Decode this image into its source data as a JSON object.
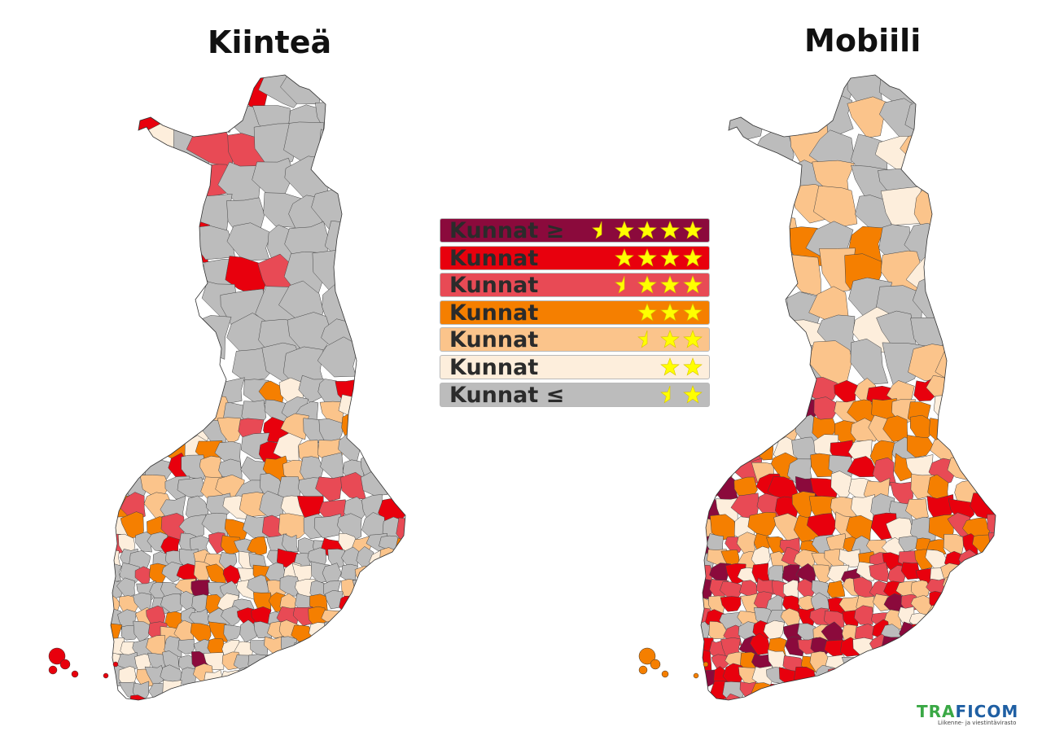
{
  "titles": {
    "left": "Kiinteä",
    "right": "Mobiili"
  },
  "legend": [
    {
      "label": "Kunnat ≥",
      "color": "#8b0a3c",
      "stars": 4.5
    },
    {
      "label": "Kunnat",
      "color": "#e8000d",
      "stars": 4
    },
    {
      "label": "Kunnat",
      "color": "#e84a55",
      "stars": 3.5
    },
    {
      "label": "Kunnat",
      "color": "#f57f00",
      "stars": 3
    },
    {
      "label": "Kunnat",
      "color": "#fbc48b",
      "stars": 2.5
    },
    {
      "label": "Kunnat",
      "color": "#fdeedc",
      "stars": 2
    },
    {
      "label": "Kunnat ≤",
      "color": "#bcbcbc",
      "stars": 1.5
    }
  ],
  "colors": {
    "star": "#ffff00",
    "border": "#444444",
    "classes": [
      "#8b0a3c",
      "#e8000d",
      "#e84a55",
      "#f57f00",
      "#fbc48b",
      "#fdeedc",
      "#bcbcbc"
    ]
  },
  "logo": {
    "name": "TRAFICOM",
    "subtitle": "Liikenne- ja viestintävirasto"
  }
}
